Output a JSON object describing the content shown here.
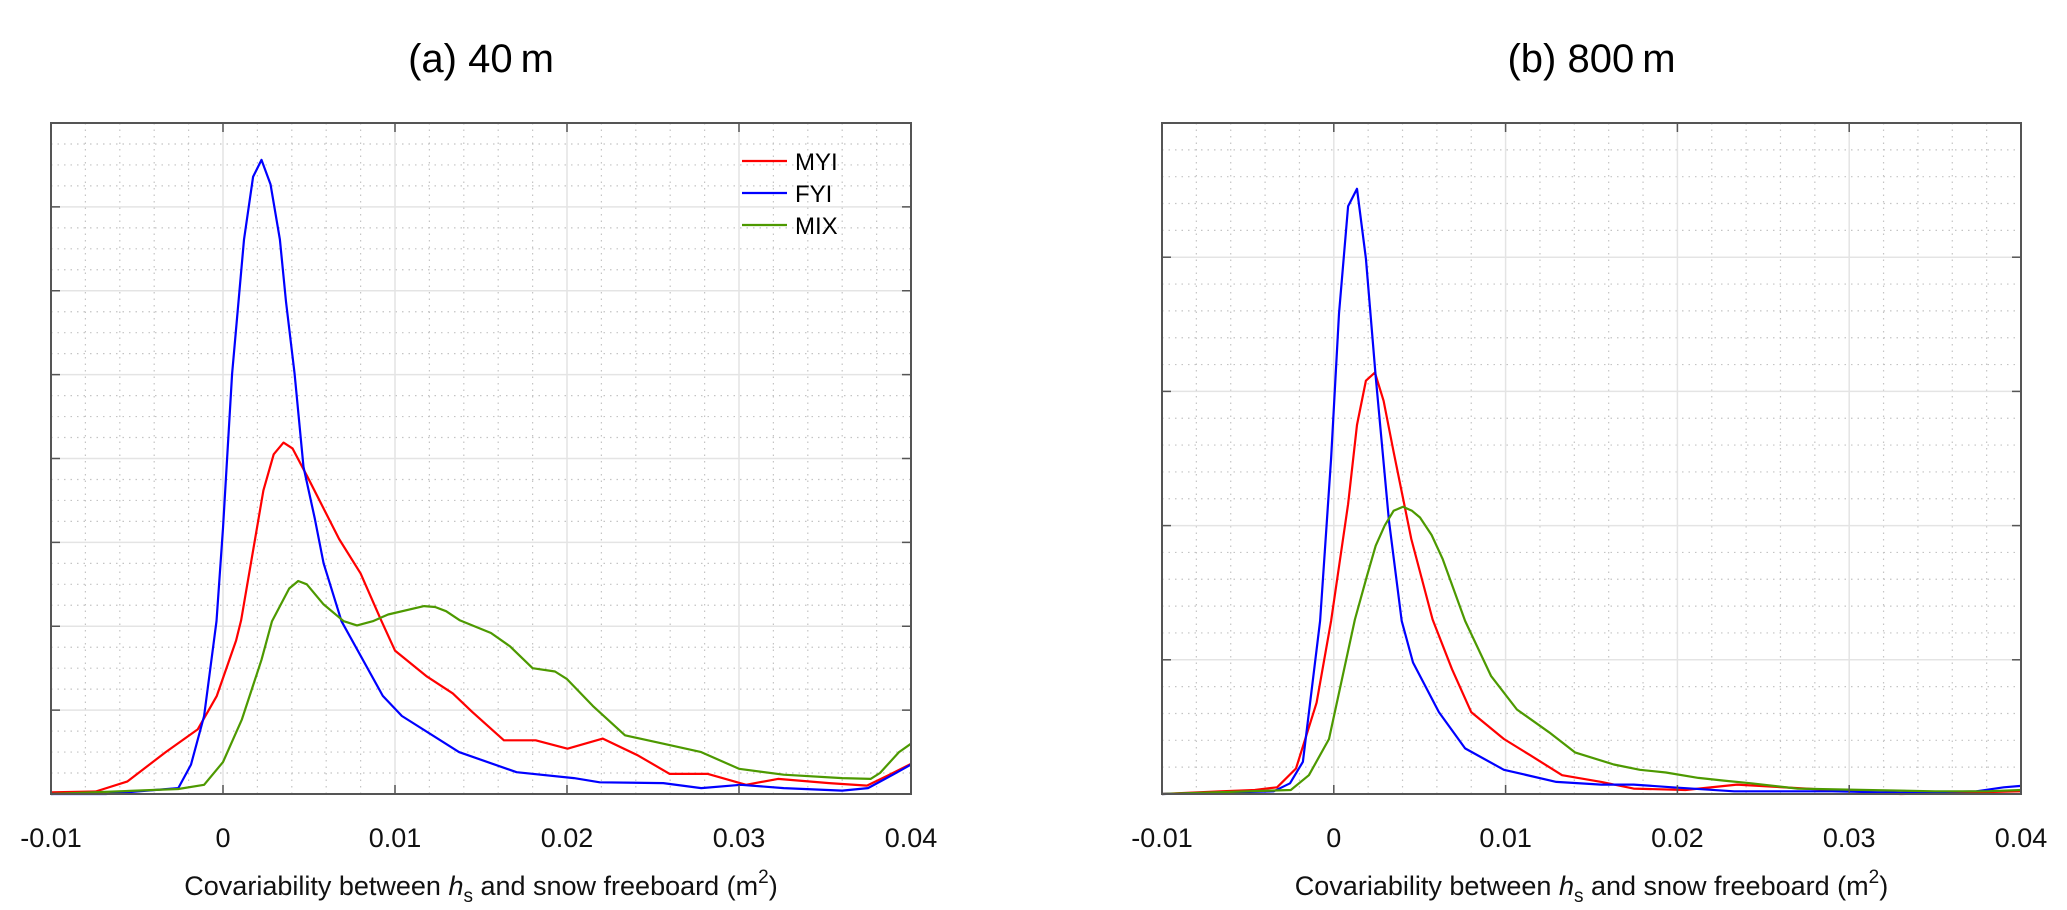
{
  "chart_data": [
    {
      "type": "line",
      "title": "(a) 40 m",
      "xlabel_parts": [
        "Covariability between ",
        "h",
        "s",
        " and snow freeboard (m",
        "2",
        ")"
      ],
      "ylabel": "",
      "xlim": [
        -0.01,
        0.04
      ],
      "ylim": [
        0,
        8
      ],
      "xticks": [
        -0.01,
        0,
        0.01,
        0.02,
        0.03,
        0.04
      ],
      "xtick_labels": [
        "-0.01",
        "0",
        "0.01",
        "0.02",
        "0.03",
        "0.04"
      ],
      "yticks": [
        0,
        1,
        2,
        3,
        4,
        5,
        6,
        7,
        8
      ],
      "ytick_labels": [],
      "grid": true,
      "legend": {
        "placement": "top-right",
        "entries": [
          "MYI",
          "FYI",
          "MIX"
        ]
      },
      "series": [
        {
          "name": "MYI",
          "color": "#ff0000",
          "points": [
            [
              -0.01,
              0.02
            ],
            [
              -0.0074,
              0.03
            ],
            [
              -0.00555,
              0.15
            ],
            [
              -0.00333,
              0.5
            ],
            [
              -0.00147,
              0.77
            ],
            [
              -0.00036,
              1.17
            ],
            [
              0.00076,
              1.83
            ],
            [
              0.00105,
              2.07
            ],
            [
              0.00235,
              3.62
            ],
            [
              0.00295,
              4.05
            ],
            [
              0.00352,
              4.19
            ],
            [
              0.00404,
              4.12
            ],
            [
              0.00494,
              3.77
            ],
            [
              0.00675,
              3.04
            ],
            [
              0.008,
              2.63
            ],
            [
              0.0092,
              2.07
            ],
            [
              0.01,
              1.71
            ],
            [
              0.01186,
              1.4
            ],
            [
              0.01336,
              1.2
            ],
            [
              0.01448,
              0.98
            ],
            [
              0.01633,
              0.64
            ],
            [
              0.01818,
              0.64
            ],
            [
              0.02003,
              0.54
            ],
            [
              0.02208,
              0.66
            ],
            [
              0.02412,
              0.46
            ],
            [
              0.02597,
              0.24
            ],
            [
              0.02819,
              0.24
            ],
            [
              0.03041,
              0.11
            ],
            [
              0.03227,
              0.18
            ],
            [
              0.03524,
              0.13
            ],
            [
              0.03744,
              0.1
            ],
            [
              0.03895,
              0.25
            ],
            [
              0.04,
              0.36
            ]
          ]
        },
        {
          "name": "FYI",
          "color": "#0000ff",
          "points": [
            [
              -0.01,
              0
            ],
            [
              -0.0068,
              0
            ],
            [
              -0.0026,
              0.07
            ],
            [
              -0.00186,
              0.35
            ],
            [
              -0.0011,
              0.93
            ],
            [
              -0.00038,
              2.06
            ],
            [
              0,
              3.17
            ],
            [
              0.00053,
              5.01
            ],
            [
              0.00122,
              6.61
            ],
            [
              0.00175,
              7.36
            ],
            [
              0.00224,
              7.56
            ],
            [
              0.00276,
              7.27
            ],
            [
              0.00331,
              6.61
            ],
            [
              0.00366,
              5.87
            ],
            [
              0.00416,
              5.01
            ],
            [
              0.00468,
              3.9
            ],
            [
              0.00533,
              3.29
            ],
            [
              0.00585,
              2.75
            ],
            [
              0.00689,
              2.06
            ],
            [
              0.00929,
              1.17
            ],
            [
              0.0104,
              0.93
            ],
            [
              0.01372,
              0.5
            ],
            [
              0.01707,
              0.26
            ],
            [
              0.0204,
              0.19
            ],
            [
              0.0219,
              0.14
            ],
            [
              0.0256,
              0.13
            ],
            [
              0.0278,
              0.07
            ],
            [
              0.0301,
              0.11
            ],
            [
              0.0326,
              0.07
            ],
            [
              0.036,
              0.04
            ],
            [
              0.0375,
              0.07
            ],
            [
              0.03895,
              0.23
            ],
            [
              0.04,
              0.35
            ]
          ]
        },
        {
          "name": "MIX",
          "color": "#4d9900",
          "points": [
            [
              -0.01,
              0
            ],
            [
              -0.0026,
              0.06
            ],
            [
              -0.0011,
              0.11
            ],
            [
              0,
              0.38
            ],
            [
              0.0011,
              0.89
            ],
            [
              0.00224,
              1.6
            ],
            [
              0.00285,
              2.06
            ],
            [
              0.00385,
              2.45
            ],
            [
              0.00437,
              2.54
            ],
            [
              0.00487,
              2.5
            ],
            [
              0.00585,
              2.26
            ],
            [
              0.00702,
              2.06
            ],
            [
              0.00779,
              2.01
            ],
            [
              0.00871,
              2.06
            ],
            [
              0.0096,
              2.14
            ],
            [
              0.01169,
              2.24
            ],
            [
              0.01233,
              2.23
            ],
            [
              0.01297,
              2.18
            ],
            [
              0.01378,
              2.07
            ],
            [
              0.01558,
              1.92
            ],
            [
              0.01669,
              1.76
            ],
            [
              0.018,
              1.5
            ],
            [
              0.0193,
              1.46
            ],
            [
              0.02,
              1.37
            ],
            [
              0.0215,
              1.05
            ],
            [
              0.02337,
              0.7
            ],
            [
              0.0256,
              0.6
            ],
            [
              0.0278,
              0.5
            ],
            [
              0.03,
              0.3
            ],
            [
              0.0326,
              0.23
            ],
            [
              0.036,
              0.19
            ],
            [
              0.03765,
              0.18
            ],
            [
              0.0382,
              0.25
            ],
            [
              0.0393,
              0.5
            ],
            [
              0.04,
              0.6
            ]
          ]
        }
      ]
    },
    {
      "type": "line",
      "title": "(b) 800 m",
      "xlabel_parts": [
        "Covariability between ",
        "h",
        "s",
        " and snow freeboard (m",
        "2",
        ")"
      ],
      "ylabel": "",
      "xlim": [
        -0.01,
        0.04
      ],
      "ylim": [
        0,
        5
      ],
      "xticks": [
        -0.01,
        0,
        0.01,
        0.02,
        0.03,
        0.04
      ],
      "xtick_labels": [
        "-0.01",
        "0",
        "0.01",
        "0.02",
        "0.03",
        "0.04"
      ],
      "yticks": [
        0,
        1,
        2,
        3,
        4,
        5
      ],
      "ytick_labels": [],
      "grid": true,
      "legend": null,
      "series": [
        {
          "name": "MYI",
          "color": "#ff0000",
          "points": [
            [
              -0.01,
              0
            ],
            [
              -0.0066,
              0.02
            ],
            [
              -0.0046,
              0.03
            ],
            [
              -0.0033,
              0.05
            ],
            [
              -0.0022,
              0.19
            ],
            [
              -0.001,
              0.68
            ],
            [
              -0.00016,
              1.29
            ],
            [
              0.00083,
              2.16
            ],
            [
              0.00135,
              2.75
            ],
            [
              0.00187,
              3.08
            ],
            [
              0.00239,
              3.14
            ],
            [
              0.0029,
              2.93
            ],
            [
              0.00348,
              2.55
            ],
            [
              0.00451,
              1.9
            ],
            [
              0.00575,
              1.3
            ],
            [
              0.00688,
              0.93
            ],
            [
              0.008,
              0.61
            ],
            [
              0.0099,
              0.41
            ],
            [
              0.01142,
              0.29
            ],
            [
              0.01329,
              0.14
            ],
            [
              0.01557,
              0.09
            ],
            [
              0.01745,
              0.04
            ],
            [
              0.02047,
              0.03
            ],
            [
              0.02347,
              0.07
            ],
            [
              0.0275,
              0.04
            ],
            [
              0.033,
              0.0
            ],
            [
              0.04,
              0.02
            ]
          ]
        },
        {
          "name": "FYI",
          "color": "#0000ff",
          "points": [
            [
              -0.01,
              0
            ],
            [
              -0.0035,
              0.02
            ],
            [
              -0.00255,
              0.08
            ],
            [
              -0.0018,
              0.24
            ],
            [
              -0.0008,
              1.29
            ],
            [
              -0.00016,
              2.5
            ],
            [
              0.0003,
              3.58
            ],
            [
              0.00083,
              4.38
            ],
            [
              0.00135,
              4.51
            ],
            [
              0.00187,
              3.99
            ],
            [
              0.00244,
              3.11
            ],
            [
              0.00321,
              2.04
            ],
            [
              0.00395,
              1.29
            ],
            [
              0.00461,
              0.98
            ],
            [
              0.00612,
              0.61
            ],
            [
              0.00764,
              0.34
            ],
            [
              0.0099,
              0.18
            ],
            [
              0.01295,
              0.09
            ],
            [
              0.01557,
              0.07
            ],
            [
              0.01745,
              0.07
            ],
            [
              0.0197,
              0.05
            ],
            [
              0.0233,
              0.02
            ],
            [
              0.029,
              0.02
            ],
            [
              0.033,
              0.01
            ],
            [
              0.0374,
              0.02
            ],
            [
              0.039,
              0.05
            ],
            [
              0.04,
              0.06
            ]
          ]
        },
        {
          "name": "MIX",
          "color": "#4d9900",
          "points": [
            [
              -0.01,
              0
            ],
            [
              -0.0025,
              0.03
            ],
            [
              -0.00145,
              0.14
            ],
            [
              -0.00028,
              0.41
            ],
            [
              0.00123,
              1.3
            ],
            [
              0.00192,
              1.62
            ],
            [
              0.00244,
              1.85
            ],
            [
              0.00296,
              2.0
            ],
            [
              0.00348,
              2.11
            ],
            [
              0.00403,
              2.14
            ],
            [
              0.00455,
              2.11
            ],
            [
              0.00502,
              2.06
            ],
            [
              0.00569,
              1.93
            ],
            [
              0.00634,
              1.75
            ],
            [
              0.00764,
              1.29
            ],
            [
              0.00915,
              0.88
            ],
            [
              0.01066,
              0.63
            ],
            [
              0.01253,
              0.46
            ],
            [
              0.01404,
              0.31
            ],
            [
              0.0163,
              0.22
            ],
            [
              0.01782,
              0.18
            ],
            [
              0.01933,
              0.16
            ],
            [
              0.02122,
              0.12
            ],
            [
              0.0227,
              0.1
            ],
            [
              0.0243,
              0.08
            ],
            [
              0.027,
              0.04
            ],
            [
              0.031,
              0.03
            ],
            [
              0.035,
              0.02
            ],
            [
              0.038,
              0.02
            ],
            [
              0.04,
              0.03
            ]
          ]
        }
      ]
    }
  ]
}
